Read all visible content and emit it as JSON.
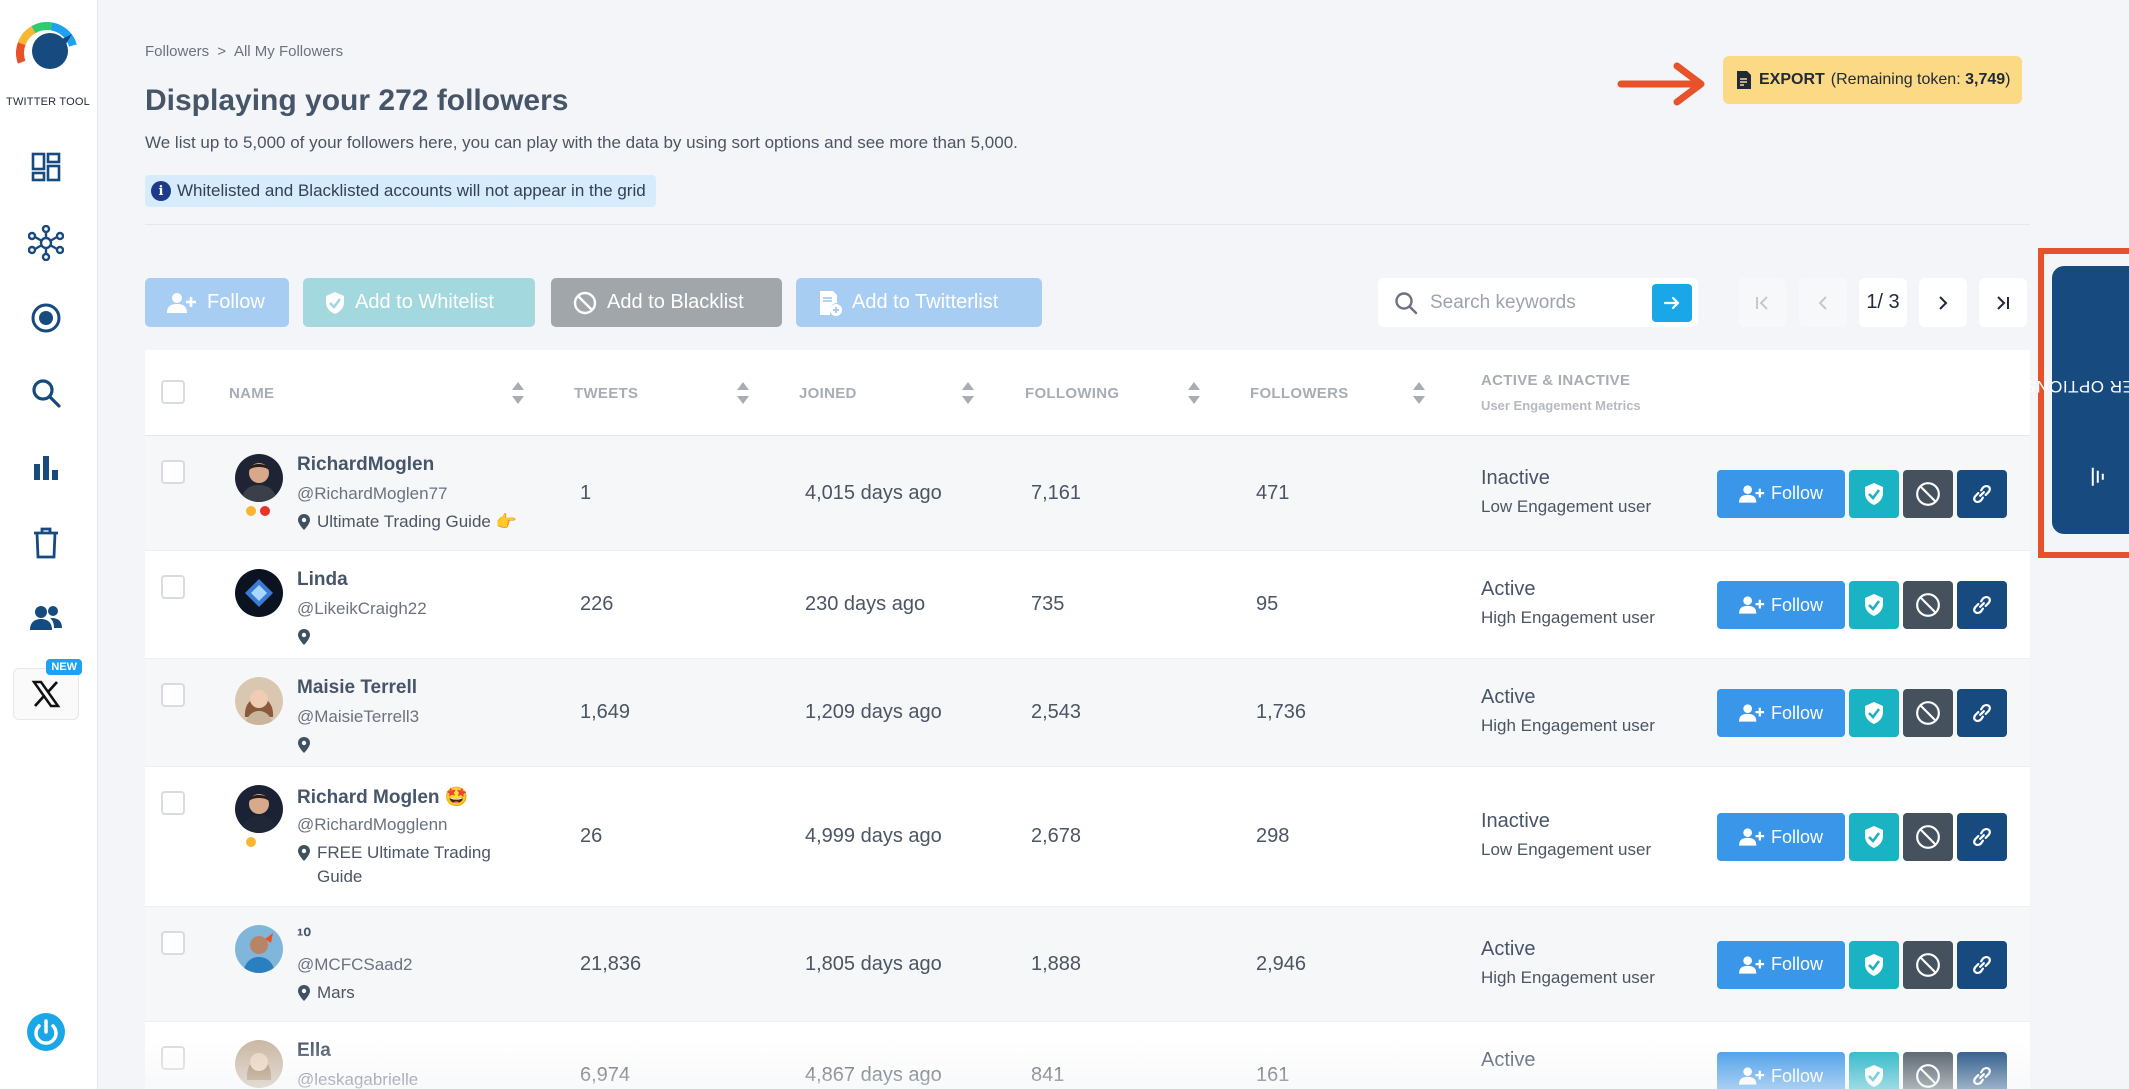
{
  "app": {
    "name": "TWITTER TOOL",
    "new_badge": "NEW"
  },
  "sidebar": {
    "icons": [
      "dashboard-icon",
      "network-icon",
      "target-icon",
      "search-icon",
      "bar-chart-icon",
      "trash-icon",
      "users-icon",
      "x-logo-icon",
      "power-icon"
    ]
  },
  "breadcrumb": {
    "root": "Followers",
    "separator": ">",
    "current": "All My Followers"
  },
  "page": {
    "title": "Displaying your 272 followers",
    "description": "We list up to 5,000 of your followers here, you can play with the data by using sort options and see more than 5,000.",
    "info": "Whitelisted and Blacklisted accounts will not appear in the grid",
    "info_icon": "i"
  },
  "export": {
    "label": "EXPORT",
    "remaining_prefix": "(Remaining token: ",
    "remaining_value": "3,749",
    "remaining_suffix": ")"
  },
  "toolbar": {
    "follow_label": "Follow",
    "whitelist_label": "Add to Whitelist",
    "blacklist_label": "Add to Blacklist",
    "twitterlist_label": "Add to Twitterlist"
  },
  "search": {
    "placeholder": "Search keywords"
  },
  "pagination": {
    "current": "1/ 3"
  },
  "table": {
    "headers": {
      "name": "NAME",
      "tweets": "TWEETS",
      "joined": "JOINED",
      "following": "FOLLOWING",
      "followers": "FOLLOWERS",
      "activity": "ACTIVE & INACTIVE",
      "activity_sub": "User Engagement Metrics"
    },
    "follow_label": "Follow",
    "rows": [
      {
        "name": "RichardMoglen",
        "handle": "@RichardMoglen77",
        "location": "Ultimate Trading Guide 👉",
        "tweets": "1",
        "joined": "4,015 days ago",
        "following": "7,161",
        "followers": "471",
        "status": "Inactive",
        "engagement": "Low Engagement user"
      },
      {
        "name": "Linda",
        "handle": "@LikeikCraigh22",
        "location": "",
        "tweets": "226",
        "joined": "230 days ago",
        "following": "735",
        "followers": "95",
        "status": "Active",
        "engagement": "High Engagement user"
      },
      {
        "name": "Maisie Terrell",
        "handle": "@MaisieTerrell3",
        "location": "",
        "tweets": "1,649",
        "joined": "1,209 days ago",
        "following": "2,543",
        "followers": "1,736",
        "status": "Active",
        "engagement": "High Engagement user"
      },
      {
        "name": "Richard Moglen 🤩",
        "handle": "@RichardMogglenn",
        "location": "FREE Ultimate Trading Guide",
        "tweets": "26",
        "joined": "4,999 days ago",
        "following": "2,678",
        "followers": "298",
        "status": "Inactive",
        "engagement": "Low Engagement user"
      },
      {
        "name": "¹⁰",
        "handle": "@MCFCSaad2",
        "location": "Mars",
        "tweets": "21,836",
        "joined": "1,805 days ago",
        "following": "1,888",
        "followers": "2,946",
        "status": "Active",
        "engagement": "High Engagement user"
      },
      {
        "name": "Ella",
        "handle": "@leskagabrielle",
        "location": "",
        "tweets": "6,974",
        "joined": "4,867 days ago",
        "following": "841",
        "followers": "161",
        "status": "Active",
        "engagement": ""
      }
    ]
  },
  "filter": {
    "label": "FILTER OPTIONS"
  },
  "colors": {
    "accent": "#1aa7e8",
    "primary": "#174a7e",
    "export": "#fbd985",
    "highlight": "#e8522a"
  }
}
